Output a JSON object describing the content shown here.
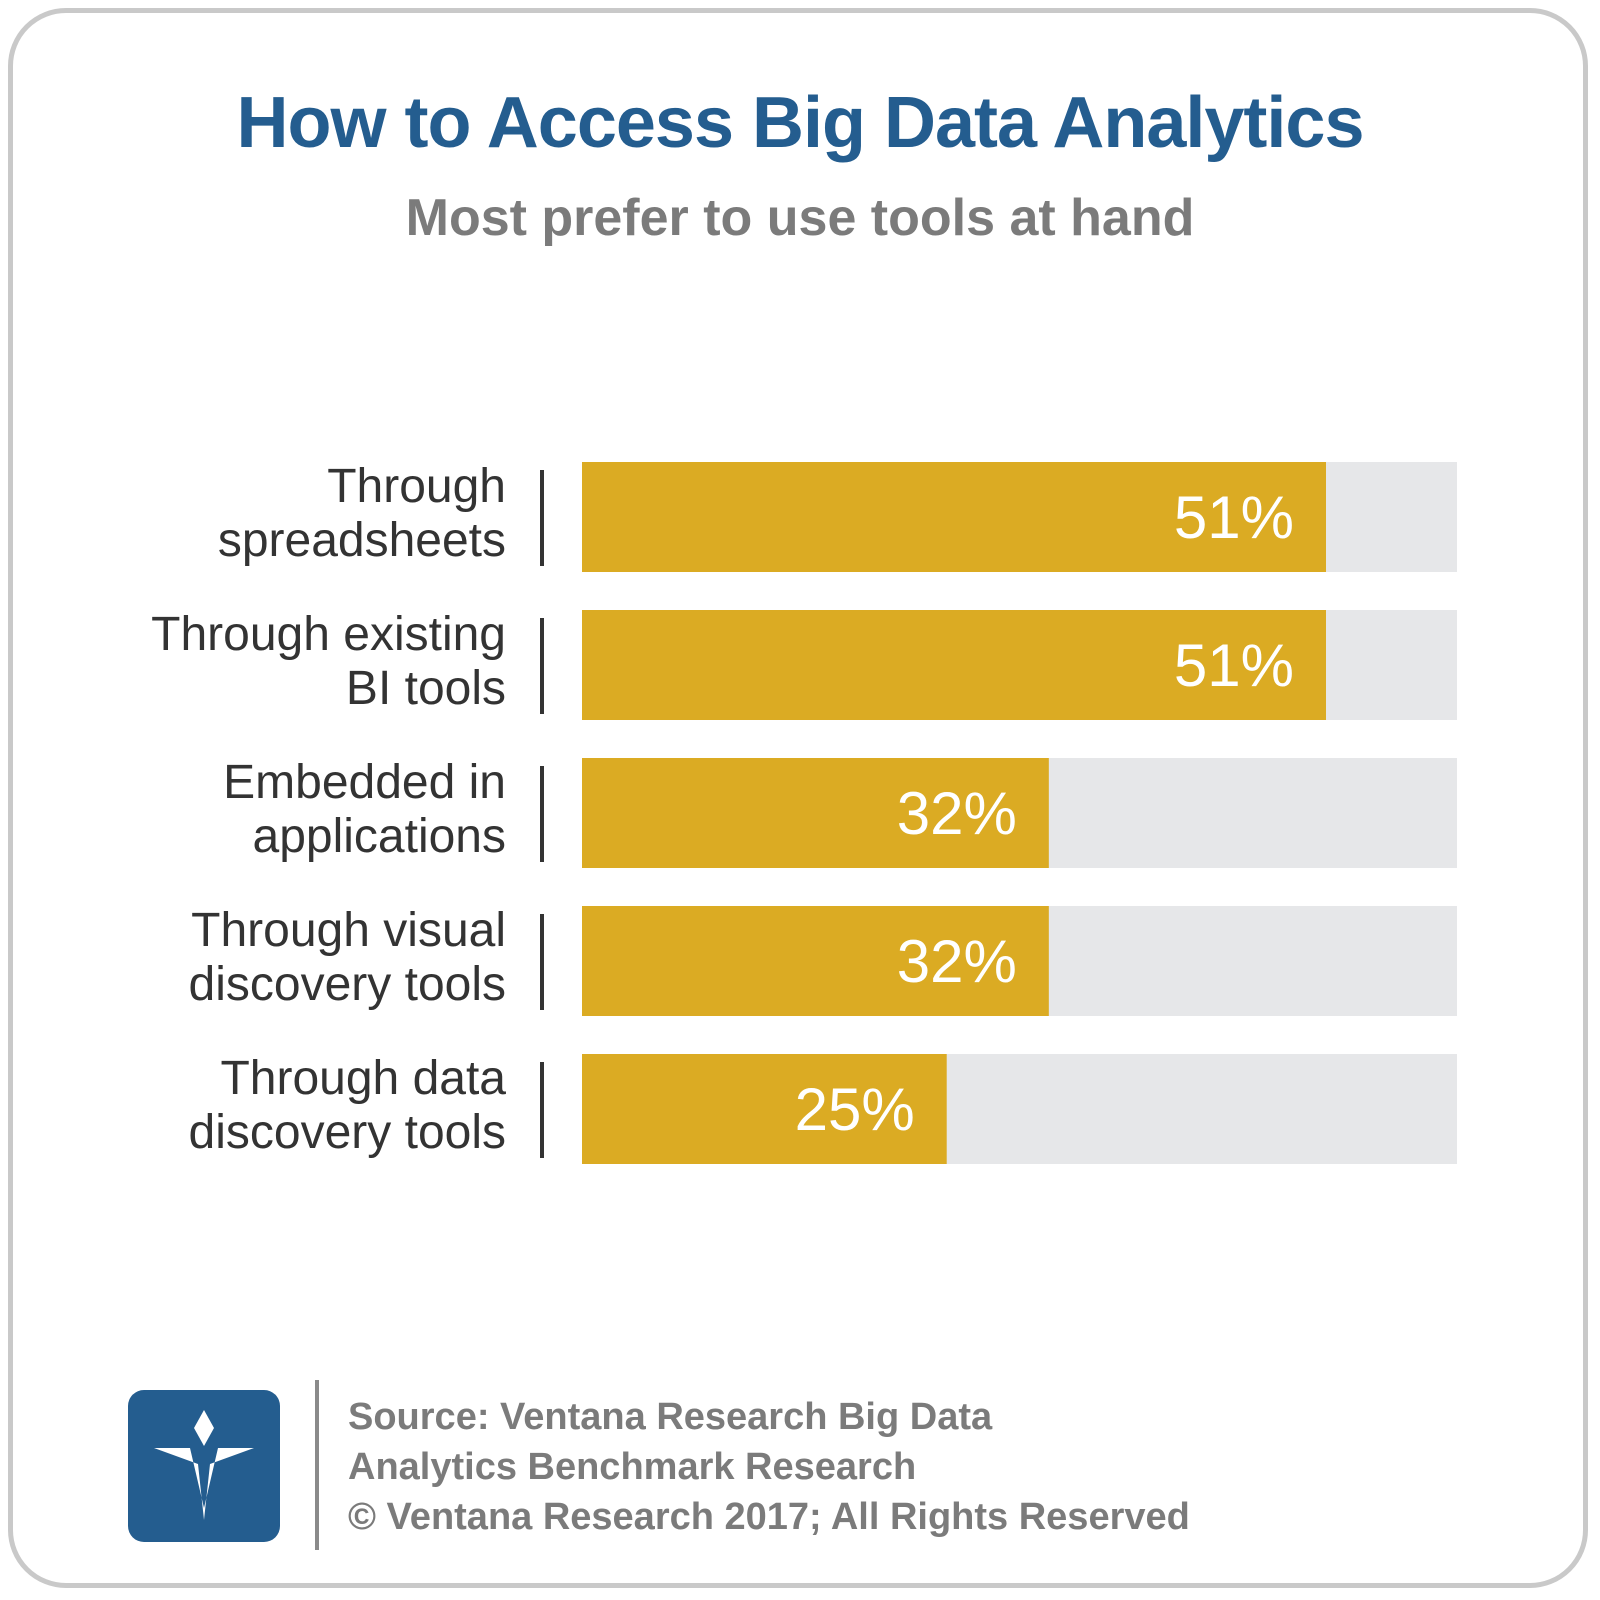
{
  "title": "How to Access Big Data Analytics",
  "subtitle": "Most prefer to use tools at hand",
  "colors": {
    "title": "#245d8f",
    "subtitle": "#7b7b7b",
    "bar": "#dbab23",
    "track": "#e6e7e9",
    "value_text": "#ffffff",
    "label_text": "#333333",
    "logo_bg": "#245d8f"
  },
  "chart_data": {
    "type": "bar",
    "orientation": "horizontal",
    "categories": [
      [
        "Through",
        "spreadsheets"
      ],
      [
        "Through existing",
        "BI tools"
      ],
      [
        "Embedded in",
        "applications"
      ],
      [
        "Through visual",
        "discovery tools"
      ],
      [
        "Through data",
        "discovery tools"
      ]
    ],
    "values": [
      51,
      51,
      32,
      32,
      25
    ],
    "value_labels": [
      "51%",
      "51%",
      "32%",
      "32%",
      "25%"
    ],
    "xlim": [
      0,
      60
    ],
    "grid": false,
    "legend": "none"
  },
  "footer": {
    "lines": [
      "Source: Ventana Research Big Data",
      "Analytics Benchmark Research",
      "© Ventana Research 2017; All Rights Reserved"
    ],
    "logo_icon": "ventana-v-logo-icon"
  }
}
